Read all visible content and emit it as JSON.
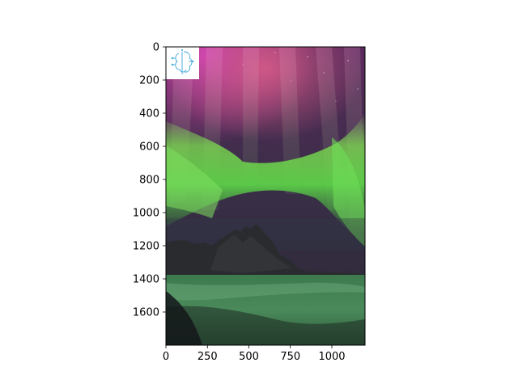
{
  "chart_data": {
    "type": "image",
    "title": "",
    "xlabel": "",
    "ylabel": "",
    "xlim": [
      0,
      1200
    ],
    "ylim": [
      1800,
      0
    ],
    "x_ticks": [
      0,
      250,
      500,
      750,
      1000
    ],
    "y_ticks": [
      0,
      200,
      400,
      600,
      800,
      1000,
      1200,
      1400,
      1600
    ],
    "grid": false,
    "legend": "none",
    "image_description": "aurora borealis over a jagged mountain peak and a wet black-sand beach",
    "logo": "stylized brain-circuit icon",
    "colors": {
      "aurora_green": "#6fe04a",
      "aurora_magenta": "#c43fb2",
      "sky_dark": "#2a2438",
      "mountain": "#2b2c2e",
      "water": "#3a6c4a",
      "logo_blue": "#3fa6d9"
    }
  }
}
